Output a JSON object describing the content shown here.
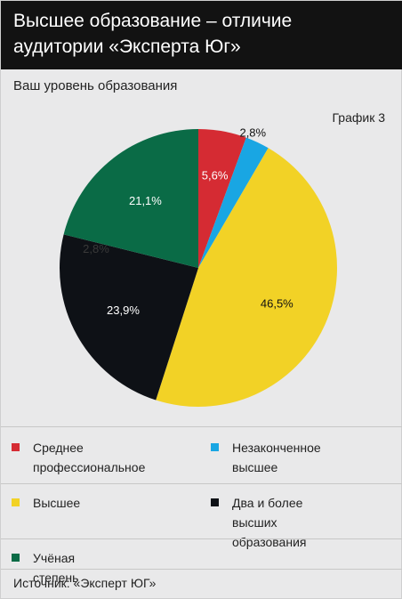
{
  "header": {
    "title": "Высшее образование – отличие аудитории «Эксперта Юг»"
  },
  "subtitle": "Ваш уровень образования",
  "graph_label": "График 3",
  "source": "Источник: «Эксперт ЮГ»",
  "chart_data": {
    "type": "pie",
    "categories": [
      "Среднее профессиональное",
      "Незаконченное высшее",
      "Высшее",
      "Два и более высших образования",
      "Учёная степень"
    ],
    "values": [
      5.6,
      2.8,
      46.5,
      23.9,
      21.1
    ],
    "value_labels": [
      "5,6%",
      "2,8%",
      "46,5%",
      "23,9%",
      "21,1%"
    ],
    "colors": [
      "#d52b33",
      "#19a6e3",
      "#f2d226",
      "#0e1116",
      "#0a6b46"
    ],
    "overlap_label": "2,8%",
    "legend_placement": "bottom",
    "legend_lines": [
      [
        "Среднее",
        "профессиональное"
      ],
      [
        "Незаконченное высшее"
      ],
      [
        "Высшее"
      ],
      [
        "Два и более высших",
        "образования"
      ],
      [
        "Учёная степень"
      ]
    ]
  }
}
